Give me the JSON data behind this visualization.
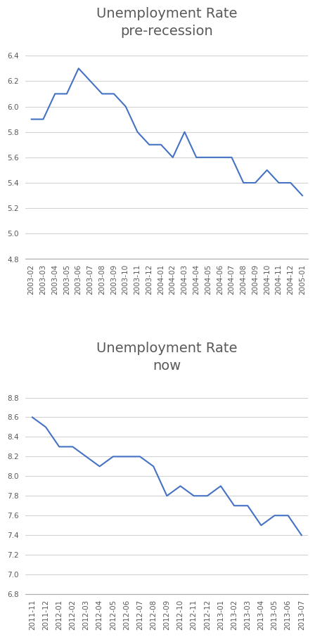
{
  "top": {
    "title_line1": "Unemployment Rate",
    "title_line2": "pre-recession",
    "labels": [
      "2003-02",
      "2003-03",
      "2003-04",
      "2003-05",
      "2003-06",
      "2003-07",
      "2003-08",
      "2003-09",
      "2003-10",
      "2003-11",
      "2003-12",
      "2004-01",
      "2004-02",
      "2004-03",
      "2004-04",
      "2004-05",
      "2004-06",
      "2004-07",
      "2004-08",
      "2004-09",
      "2004-10",
      "2004-11",
      "2004-12",
      "2005-01"
    ],
    "values": [
      5.9,
      5.9,
      6.1,
      6.1,
      6.3,
      6.2,
      6.1,
      6.1,
      6.0,
      5.8,
      5.7,
      5.7,
      5.6,
      5.8,
      5.6,
      5.6,
      5.6,
      5.6,
      5.4,
      5.4,
      5.5,
      5.4,
      5.4,
      5.3
    ],
    "ylim": [
      4.8,
      6.5
    ],
    "yticks": [
      4.8,
      5.0,
      5.2,
      5.4,
      5.6,
      5.8,
      6.0,
      6.2,
      6.4
    ],
    "line_color": "#4472c4"
  },
  "bottom": {
    "title_line1": "Unemployment Rate",
    "title_line2": "now",
    "labels": [
      "2011-11",
      "2011-12",
      "2012-01",
      "2012-02",
      "2012-03",
      "2012-04",
      "2012-05",
      "2012-06",
      "2012-07",
      "2012-08",
      "2012-09",
      "2012-10",
      "2012-11",
      "2012-12",
      "2013-01",
      "2013-02",
      "2013-03",
      "2013-04",
      "2013-05",
      "2013-06",
      "2013-07"
    ],
    "values": [
      8.6,
      8.5,
      8.3,
      8.3,
      8.2,
      8.1,
      8.2,
      8.2,
      8.2,
      8.1,
      7.8,
      7.9,
      7.8,
      7.8,
      7.9,
      7.7,
      7.7,
      7.5,
      7.6,
      7.6,
      7.4
    ],
    "ylim": [
      6.8,
      9.0
    ],
    "yticks": [
      6.8,
      7.0,
      7.2,
      7.4,
      7.6,
      7.8,
      8.0,
      8.2,
      8.4,
      8.6,
      8.8
    ],
    "line_color": "#4472c4"
  },
  "background_color": "#ffffff",
  "grid_color": "#d3d3d3",
  "tick_label_fontsize": 7.5,
  "title_fontsize": 14,
  "title_color": "#595959"
}
